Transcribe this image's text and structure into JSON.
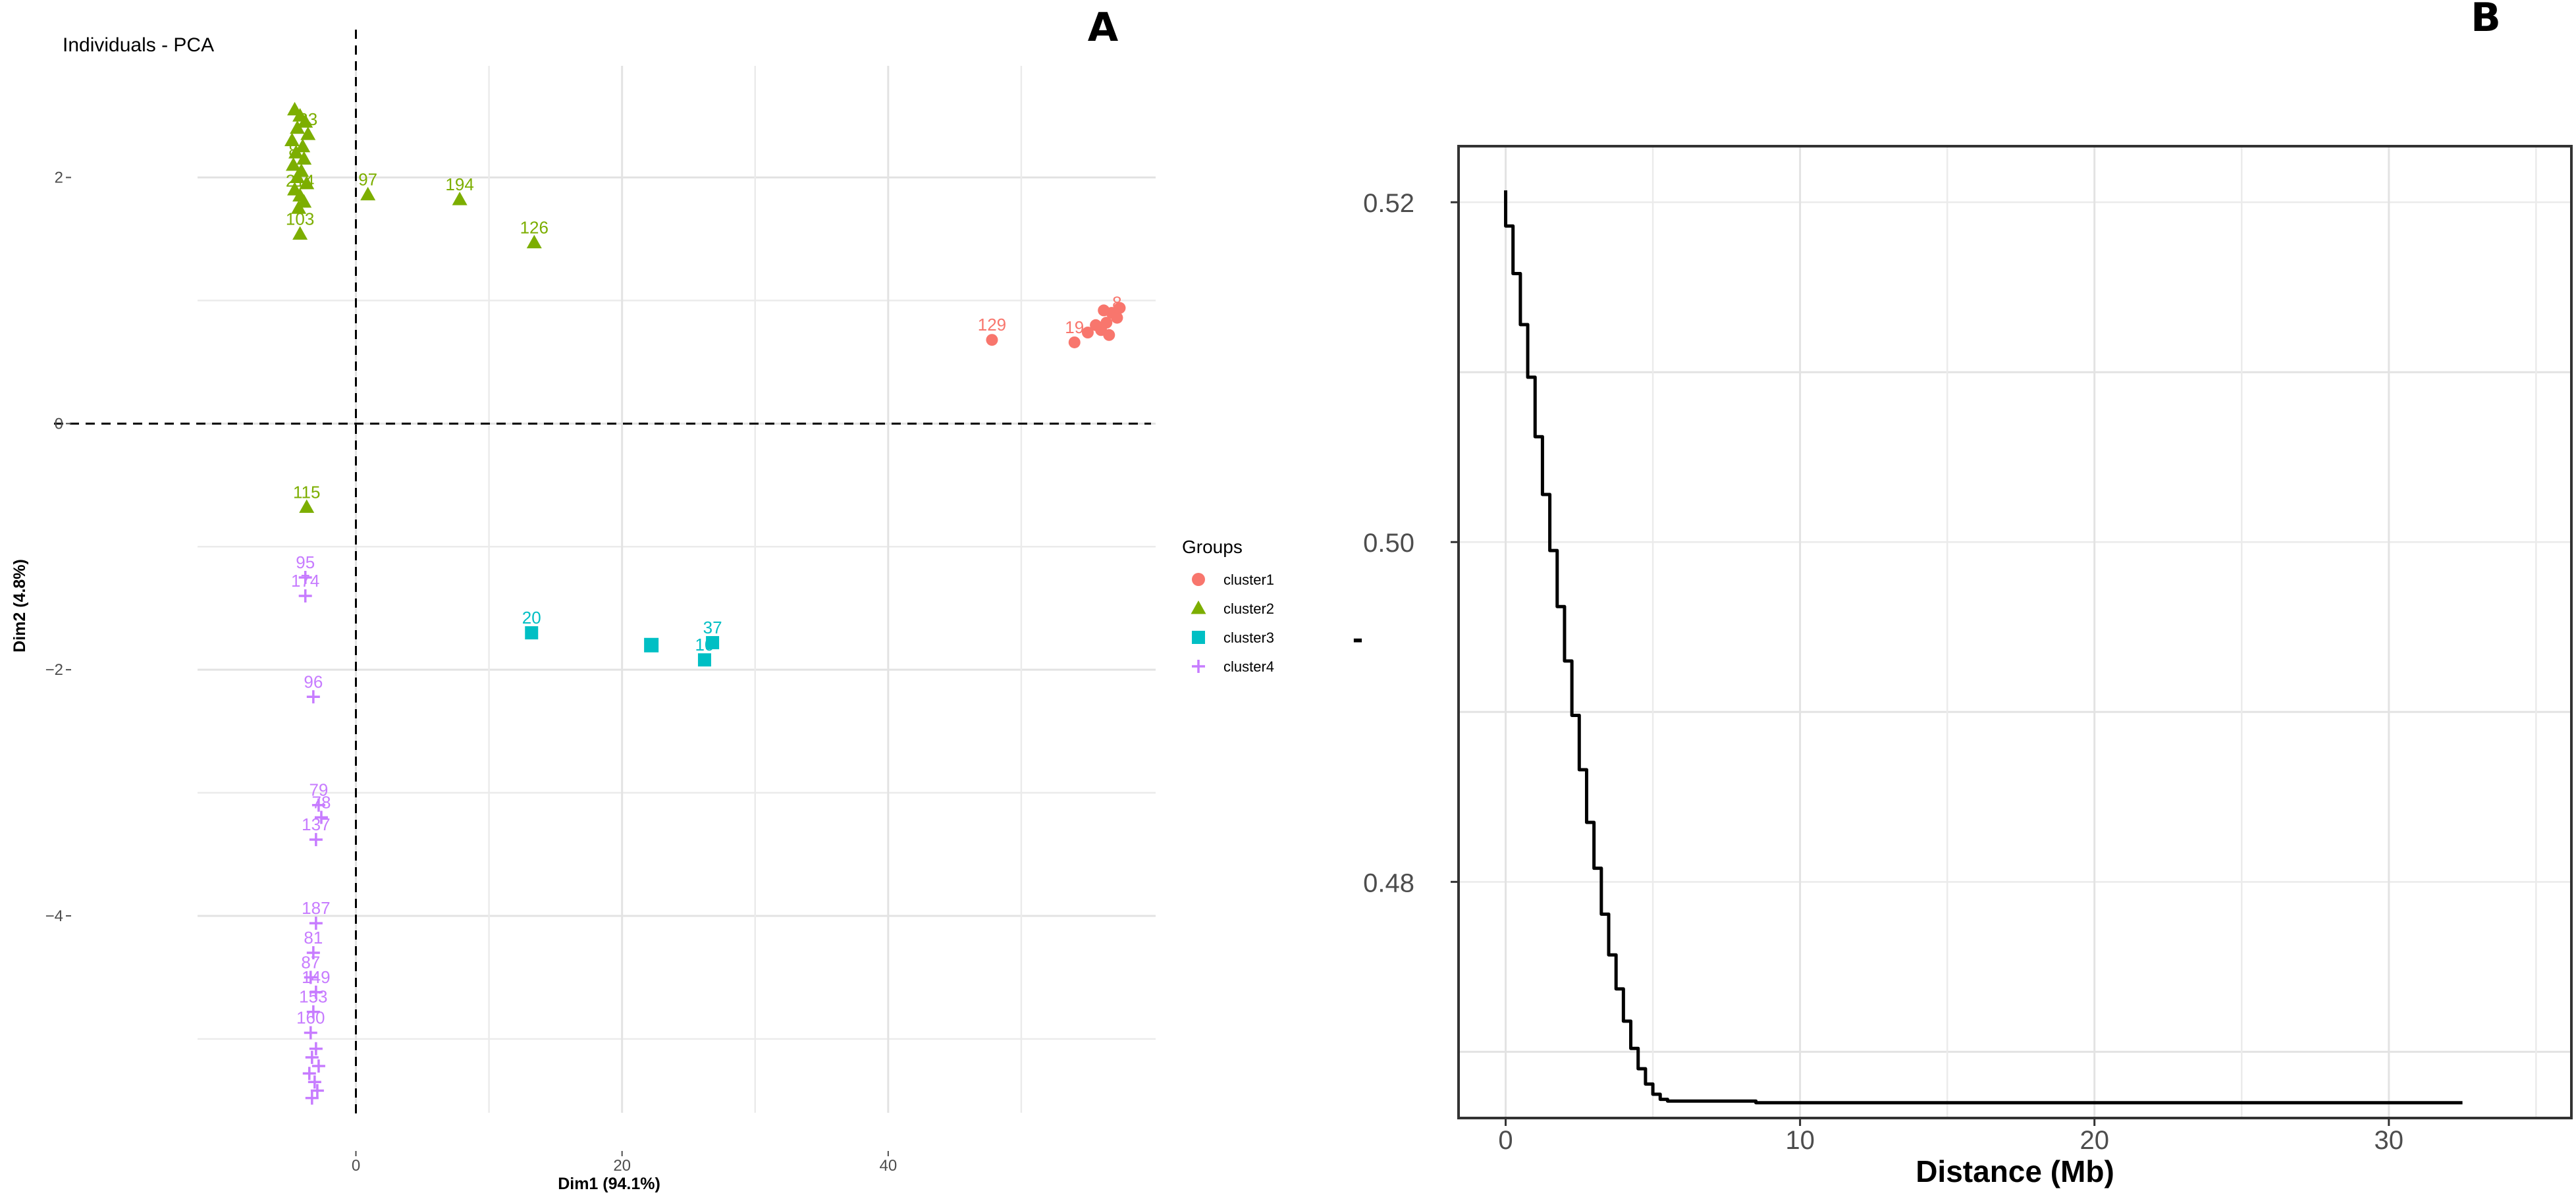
{
  "panel_labels": {
    "a": "A",
    "b": "B"
  },
  "colors": {
    "cluster1": "#F8766D",
    "cluster2": "#7CAE00",
    "cluster3": "#00BFC4",
    "cluster4": "#C77CFF",
    "curve": "#000000"
  },
  "chart_data": [
    {
      "type": "scatter",
      "title": "Individuals - PCA",
      "xlabel": "Dim1 (94.1%)",
      "ylabel": "Dim2 (4.8%)",
      "xlim": [
        -12,
        60
      ],
      "ylim": [
        -5.6,
        2.8
      ],
      "xticks": [
        0,
        20,
        40
      ],
      "yticks": [
        2,
        0,
        -2,
        -4
      ],
      "grid": true,
      "reference_lines": {
        "x": 0,
        "y": 0,
        "style": "dashed"
      },
      "legend": {
        "title": "Groups",
        "position": "right",
        "entries": [
          {
            "label": "cluster1",
            "shape": "circle"
          },
          {
            "label": "cluster2",
            "shape": "triangle"
          },
          {
            "label": "cluster3",
            "shape": "square"
          },
          {
            "label": "cluster4",
            "shape": "plus"
          }
        ]
      },
      "series": [
        {
          "key": "cluster1",
          "shape": "circle",
          "points": [
            {
              "x": 47.8,
              "y": 0.68,
              "label": "129"
            },
            {
              "x": 54.0,
              "y": 0.66,
              "label": "19"
            },
            {
              "x": 55.0,
              "y": 0.74,
              "label": ""
            },
            {
              "x": 56.0,
              "y": 0.76,
              "label": ""
            },
            {
              "x": 56.4,
              "y": 0.82,
              "label": ""
            },
            {
              "x": 56.8,
              "y": 0.9,
              "label": ""
            },
            {
              "x": 57.2,
              "y": 0.86,
              "label": "8"
            },
            {
              "x": 56.2,
              "y": 0.92,
              "label": ""
            },
            {
              "x": 57.4,
              "y": 0.94,
              "label": ""
            },
            {
              "x": 55.6,
              "y": 0.8,
              "label": ""
            },
            {
              "x": 56.6,
              "y": 0.72,
              "label": ""
            }
          ]
        },
        {
          "key": "cluster2",
          "shape": "triangle",
          "points": [
            {
              "x": 0.9,
              "y": 1.86,
              "label": "97"
            },
            {
              "x": 7.8,
              "y": 1.82,
              "label": "194"
            },
            {
              "x": 13.4,
              "y": 1.47,
              "label": "126"
            },
            {
              "x": -4.2,
              "y": 1.54,
              "label": "103"
            },
            {
              "x": -3.7,
              "y": -0.68,
              "label": "115"
            },
            {
              "x": -4.6,
              "y": 2.55,
              "label": ""
            },
            {
              "x": -4.2,
              "y": 2.5,
              "label": ""
            },
            {
              "x": -3.8,
              "y": 2.45,
              "label": ""
            },
            {
              "x": -4.4,
              "y": 2.4,
              "label": ""
            },
            {
              "x": -3.6,
              "y": 2.35,
              "label": "23"
            },
            {
              "x": -4.8,
              "y": 2.3,
              "label": ""
            },
            {
              "x": -4.0,
              "y": 2.25,
              "label": ""
            },
            {
              "x": -4.5,
              "y": 2.2,
              "label": ""
            },
            {
              "x": -3.9,
              "y": 2.15,
              "label": ""
            },
            {
              "x": -4.7,
              "y": 2.1,
              "label": "8"
            },
            {
              "x": -4.1,
              "y": 2.05,
              "label": ""
            },
            {
              "x": -4.4,
              "y": 2.0,
              "label": ""
            },
            {
              "x": -3.7,
              "y": 1.95,
              "label": ""
            },
            {
              "x": -4.6,
              "y": 1.9,
              "label": ""
            },
            {
              "x": -4.2,
              "y": 1.85,
              "label": "214"
            },
            {
              "x": -3.9,
              "y": 1.8,
              "label": ""
            },
            {
              "x": -4.3,
              "y": 1.75,
              "label": ""
            }
          ]
        },
        {
          "key": "cluster3",
          "shape": "square",
          "points": [
            {
              "x": 13.2,
              "y": -1.7,
              "label": "20"
            },
            {
              "x": 22.2,
              "y": -1.8,
              "label": ""
            },
            {
              "x": 26.2,
              "y": -1.92,
              "label": "10"
            },
            {
              "x": 26.8,
              "y": -1.78,
              "label": "37"
            }
          ]
        },
        {
          "key": "cluster4",
          "shape": "plus",
          "points": [
            {
              "x": -3.8,
              "y": -1.4,
              "label": "174"
            },
            {
              "x": -3.8,
              "y": -1.25,
              "label": "95"
            },
            {
              "x": -3.2,
              "y": -2.22,
              "label": "96"
            },
            {
              "x": -2.8,
              "y": -3.1,
              "label": "79"
            },
            {
              "x": -2.6,
              "y": -3.2,
              "label": "78"
            },
            {
              "x": -3.0,
              "y": -3.38,
              "label": "137"
            },
            {
              "x": -3.0,
              "y": -4.06,
              "label": "187"
            },
            {
              "x": -3.2,
              "y": -4.3,
              "label": "81"
            },
            {
              "x": -3.4,
              "y": -4.5,
              "label": "87"
            },
            {
              "x": -3.0,
              "y": -4.62,
              "label": "149"
            },
            {
              "x": -3.2,
              "y": -4.78,
              "label": "153"
            },
            {
              "x": -3.4,
              "y": -4.95,
              "label": "160"
            },
            {
              "x": -3.0,
              "y": -5.08,
              "label": ""
            },
            {
              "x": -3.3,
              "y": -5.15,
              "label": ""
            },
            {
              "x": -2.8,
              "y": -5.22,
              "label": ""
            },
            {
              "x": -3.5,
              "y": -5.28,
              "label": ""
            },
            {
              "x": -3.1,
              "y": -5.35,
              "label": ""
            },
            {
              "x": -2.9,
              "y": -5.42,
              "label": ""
            },
            {
              "x": -3.3,
              "y": -5.48,
              "label": ""
            }
          ]
        }
      ]
    },
    {
      "type": "line",
      "xlabel": "Distance (Mb)",
      "ylabel": "-",
      "xlim": [
        -1.6,
        36.2
      ],
      "ylim": [
        0.4661,
        0.5233
      ],
      "xticks": [
        0,
        10,
        20,
        30
      ],
      "yticks": [
        0.48,
        0.5,
        0.52
      ],
      "ytick_labels": [
        "0.48",
        "0.50",
        "0.52"
      ],
      "grid": true,
      "series": [
        {
          "key": "curve",
          "points": [
            [
              0,
              0.5207
            ],
            [
              0.25,
              0.5186
            ],
            [
              0.5,
              0.5158
            ],
            [
              0.75,
              0.5128
            ],
            [
              1.0,
              0.5097
            ],
            [
              1.25,
              0.5062
            ],
            [
              1.5,
              0.5028
            ],
            [
              1.75,
              0.4995
            ],
            [
              2.0,
              0.4962
            ],
            [
              2.25,
              0.493
            ],
            [
              2.5,
              0.4898
            ],
            [
              2.75,
              0.4866
            ],
            [
              3.0,
              0.4835
            ],
            [
              3.25,
              0.4808
            ],
            [
              3.5,
              0.4781
            ],
            [
              3.75,
              0.4757
            ],
            [
              4.0,
              0.4737
            ],
            [
              4.25,
              0.4718
            ],
            [
              4.5,
              0.4702
            ],
            [
              4.75,
              0.469
            ],
            [
              5.0,
              0.4681
            ],
            [
              5.25,
              0.4675
            ],
            [
              5.5,
              0.4672
            ],
            [
              6.0,
              0.4671
            ],
            [
              8.5,
              0.4671
            ],
            [
              8.6,
              0.467
            ],
            [
              32.5,
              0.467
            ]
          ]
        }
      ]
    }
  ]
}
